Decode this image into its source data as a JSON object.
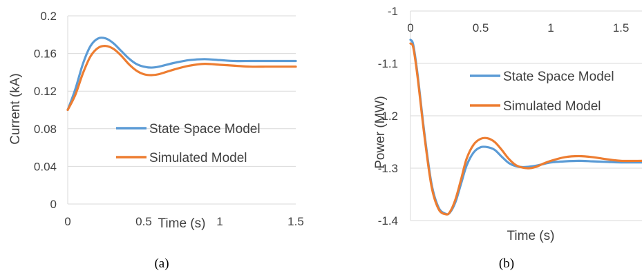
{
  "chart_data": [
    {
      "type": "line",
      "panel": "a",
      "caption": "(a)",
      "xlabel": "Time (s)",
      "ylabel": "Current (kA)",
      "xlim": [
        0,
        1.5
      ],
      "ylim": [
        0,
        0.2
      ],
      "xticks": [
        0,
        0.5,
        1,
        1.5
      ],
      "xtick_labels": [
        "0",
        "0.5",
        "1",
        "1.5"
      ],
      "yticks": [
        0,
        0.04,
        0.08,
        0.12,
        0.16,
        0.2
      ],
      "ytick_labels": [
        "0",
        "0.04",
        "0.08",
        "0.12",
        "0.16",
        "0.2"
      ],
      "grid": "horizontal",
      "legend_position": "lower-right",
      "series": [
        {
          "name": "State Space Model",
          "color": "#5B9BD5",
          "x": [
            0,
            0.05,
            0.1,
            0.15,
            0.2,
            0.25,
            0.3,
            0.35,
            0.4,
            0.45,
            0.5,
            0.55,
            0.6,
            0.7,
            0.8,
            0.9,
            1.0,
            1.1,
            1.2,
            1.3,
            1.4,
            1.5
          ],
          "y": [
            0.1,
            0.122,
            0.149,
            0.168,
            0.176,
            0.176,
            0.171,
            0.163,
            0.155,
            0.149,
            0.146,
            0.145,
            0.146,
            0.15,
            0.153,
            0.154,
            0.153,
            0.152,
            0.152,
            0.152,
            0.152,
            0.152
          ]
        },
        {
          "name": "Simulated Model",
          "color": "#ED7D31",
          "x": [
            0,
            0.05,
            0.1,
            0.15,
            0.2,
            0.25,
            0.3,
            0.35,
            0.4,
            0.45,
            0.5,
            0.55,
            0.6,
            0.7,
            0.8,
            0.9,
            1.0,
            1.1,
            1.2,
            1.3,
            1.4,
            1.5
          ],
          "y": [
            0.1,
            0.116,
            0.139,
            0.157,
            0.166,
            0.168,
            0.165,
            0.158,
            0.149,
            0.142,
            0.138,
            0.137,
            0.138,
            0.143,
            0.147,
            0.149,
            0.148,
            0.147,
            0.146,
            0.146,
            0.146,
            0.146
          ]
        }
      ]
    },
    {
      "type": "line",
      "panel": "b",
      "caption": "(b)",
      "xlabel": "Time (s)",
      "ylabel": "Power (MW)",
      "xlim": [
        0,
        1.65
      ],
      "ylim": [
        -1.4,
        -1.0
      ],
      "xticks": [
        0,
        0.5,
        1,
        1.5
      ],
      "xtick_labels": [
        "0",
        "0.5",
        "1",
        "1.5"
      ],
      "yticks": [
        -1.4,
        -1.3,
        -1.2,
        -1.1,
        -1.0
      ],
      "ytick_labels": [
        "-1.4",
        "-1.3",
        "-1.2",
        "-1.1",
        "-1"
      ],
      "grid": "horizontal",
      "legend_position": "top-right",
      "series": [
        {
          "name": "State Space Model",
          "color": "#5B9BD5",
          "x": [
            0,
            0.02,
            0.05,
            0.1,
            0.15,
            0.2,
            0.25,
            0.28,
            0.32,
            0.36,
            0.4,
            0.45,
            0.5,
            0.55,
            0.6,
            0.65,
            0.7,
            0.75,
            0.8,
            0.85,
            0.9,
            0.95,
            1.0,
            1.1,
            1.2,
            1.3,
            1.4,
            1.5,
            1.65
          ],
          "y": [
            -1.055,
            -1.065,
            -1.12,
            -1.235,
            -1.33,
            -1.375,
            -1.387,
            -1.385,
            -1.365,
            -1.33,
            -1.295,
            -1.27,
            -1.26,
            -1.26,
            -1.265,
            -1.278,
            -1.29,
            -1.296,
            -1.298,
            -1.297,
            -1.295,
            -1.292,
            -1.289,
            -1.287,
            -1.286,
            -1.287,
            -1.288,
            -1.289,
            -1.289
          ]
        },
        {
          "name": "Simulated Model",
          "color": "#ED7D31",
          "x": [
            0,
            0.02,
            0.05,
            0.1,
            0.15,
            0.2,
            0.25,
            0.28,
            0.32,
            0.36,
            0.4,
            0.45,
            0.5,
            0.55,
            0.6,
            0.65,
            0.7,
            0.75,
            0.8,
            0.85,
            0.9,
            0.95,
            1.0,
            1.1,
            1.2,
            1.3,
            1.4,
            1.5,
            1.65
          ],
          "y": [
            -1.062,
            -1.07,
            -1.125,
            -1.24,
            -1.335,
            -1.378,
            -1.388,
            -1.384,
            -1.36,
            -1.322,
            -1.282,
            -1.255,
            -1.244,
            -1.243,
            -1.25,
            -1.265,
            -1.282,
            -1.294,
            -1.299,
            -1.3,
            -1.297,
            -1.291,
            -1.286,
            -1.279,
            -1.277,
            -1.279,
            -1.283,
            -1.286,
            -1.286
          ]
        }
      ]
    }
  ]
}
